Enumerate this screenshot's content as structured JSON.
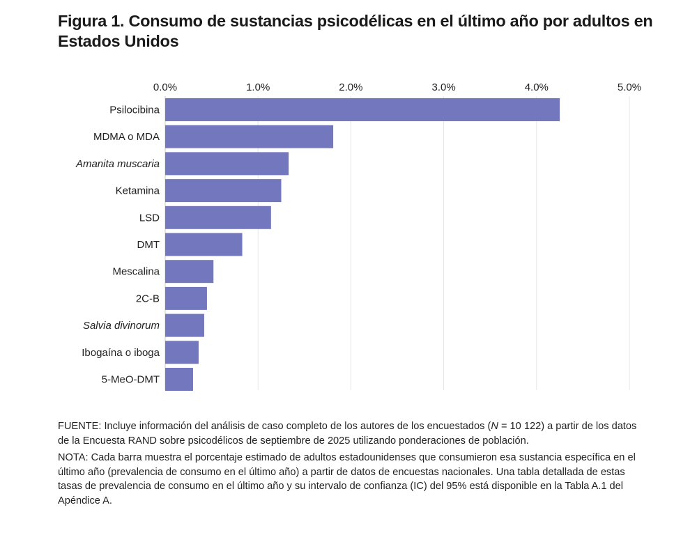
{
  "title": {
    "prefix": "Figura 1.",
    "text": "Consumo de sustancias psicodélicas en el último año por adultos en Estados Unidos"
  },
  "colors": {
    "bar": "#7377bd",
    "grid": "#e6e6e6",
    "text": "#222222"
  },
  "chart_data": {
    "type": "bar",
    "orientation": "horizontal",
    "categories": [
      "Psilocibina",
      "MDMA o MDA",
      "Amanita muscaria",
      "Ketamina",
      "LSD",
      "DMT",
      "Mescalina",
      "2C-B",
      "Salvia divinorum",
      "Ibogaína o iboga",
      "5-MeO-DMT"
    ],
    "italic_categories": [
      "Amanita muscaria",
      "Salvia divinorum"
    ],
    "values": [
      4.25,
      1.81,
      1.33,
      1.25,
      1.14,
      0.83,
      0.52,
      0.45,
      0.42,
      0.36,
      0.3
    ],
    "unit": "%",
    "xlim": [
      0,
      5
    ],
    "xticks": [
      "0.0%",
      "1.0%",
      "2.0%",
      "3.0%",
      "4.0%",
      "5.0%"
    ],
    "xaxis_position": "top",
    "grid": true,
    "legend": "none"
  },
  "notes": {
    "source_a": "FUENTE: Incluye información del análisis de caso completo de los autores de los encuestados (",
    "source_n": "N",
    "source_b": " = 10 122) a partir de los datos de la Encuesta RAND sobre psicodélicos de septiembre de 2025 utilizando ponderaciones de población.",
    "note": "NOTA: Cada barra muestra el porcentaje estimado de adultos estadounidenses que consumieron esa sustancia específica en el último año (prevalencia de consumo en el último año) a partir de datos de encuestas nacionales. Una tabla detallada de estas tasas de prevalencia de consumo en el último año y su intervalo de confianza (IC) del 95% está disponible en la Tabla A.1 del Apéndice A."
  }
}
